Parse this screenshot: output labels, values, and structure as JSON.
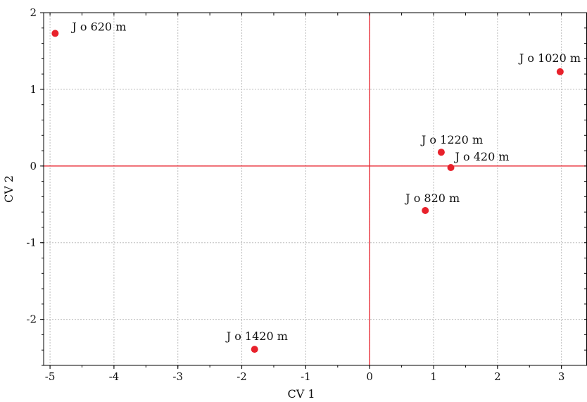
{
  "chart_data": {
    "type": "scatter",
    "title": "",
    "xlabel": "CV 1",
    "ylabel": "CV 2",
    "xlim": [
      -5.1,
      3.4
    ],
    "ylim": [
      -2.6,
      2.0
    ],
    "x_ticks": [
      -5,
      -4,
      -3,
      -2,
      -1,
      0,
      1,
      2,
      3
    ],
    "y_ticks": [
      -2,
      -1,
      0,
      1,
      2
    ],
    "grid": true,
    "zero_lines": true,
    "point_color": "#e8212b",
    "line_color": "#e8212b",
    "points": [
      {
        "label": "J o 620 m",
        "x": -4.92,
        "y": 1.73
      },
      {
        "label": "J o 1020 m",
        "x": 2.98,
        "y": 1.23
      },
      {
        "label": "J o 1220 m",
        "x": 1.12,
        "y": 0.18
      },
      {
        "label": "J o 420 m",
        "x": 1.27,
        "y": -0.02
      },
      {
        "label": "J o 820 m",
        "x": 0.87,
        "y": -0.58
      },
      {
        "label": "J o 1420 m",
        "x": -1.8,
        "y": -2.39
      }
    ]
  }
}
